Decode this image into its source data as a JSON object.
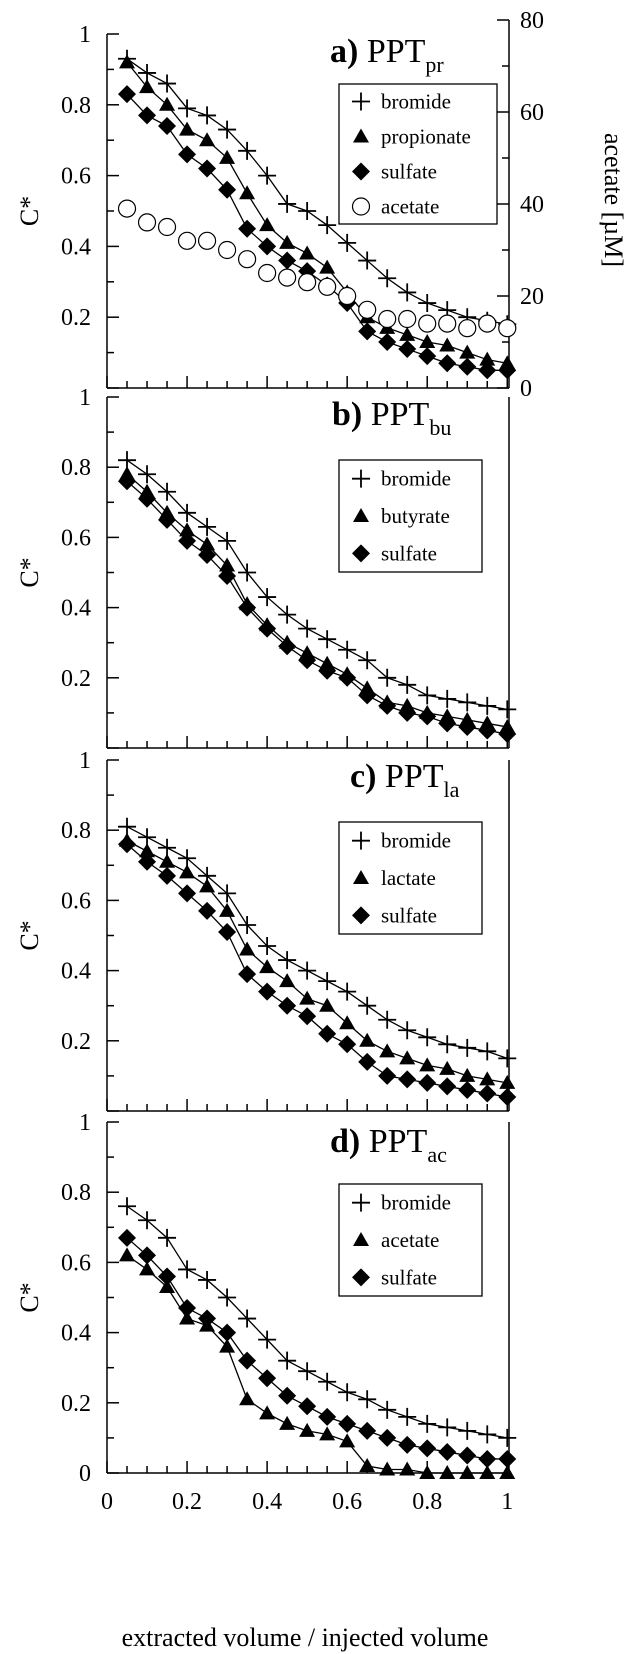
{
  "chart_data": [
    {
      "type": "line",
      "title": "a) PPT",
      "title_sub": "pr",
      "ylabel": "C*",
      "ylabel_right": "acetate [µM]",
      "ylim": [
        0,
        1
      ],
      "y_ticks": [
        "1",
        "0.8",
        "0.6",
        "0.4",
        "0.2"
      ],
      "y2lim": [
        0,
        80
      ],
      "y2_ticks": [
        "80",
        "60",
        "40",
        "20",
        "0"
      ],
      "legend": "top-right",
      "series": [
        {
          "name": "bromide",
          "marker": "plus",
          "line": true,
          "axis": "left",
          "x": [
            0.05,
            0.1,
            0.15,
            0.2,
            0.25,
            0.3,
            0.35,
            0.4,
            0.45,
            0.5,
            0.55,
            0.6,
            0.65,
            0.7,
            0.75,
            0.8,
            0.85,
            0.9,
            0.95,
            1.0
          ],
          "y": [
            0.93,
            0.89,
            0.86,
            0.79,
            0.77,
            0.73,
            0.67,
            0.6,
            0.52,
            0.5,
            0.46,
            0.41,
            0.36,
            0.31,
            0.27,
            0.24,
            0.22,
            0.2,
            0.19,
            0.18
          ]
        },
        {
          "name": "propionate",
          "marker": "triangle",
          "line": true,
          "axis": "left",
          "x": [
            0.05,
            0.1,
            0.15,
            0.2,
            0.25,
            0.3,
            0.35,
            0.4,
            0.45,
            0.5,
            0.55,
            0.6,
            0.65,
            0.7,
            0.75,
            0.8,
            0.85,
            0.9,
            0.95,
            1.0
          ],
          "y": [
            0.92,
            0.85,
            0.8,
            0.73,
            0.7,
            0.65,
            0.55,
            0.46,
            0.41,
            0.38,
            0.34,
            0.27,
            0.2,
            0.17,
            0.15,
            0.13,
            0.12,
            0.1,
            0.08,
            0.07
          ]
        },
        {
          "name": "sulfate",
          "marker": "diamond",
          "line": true,
          "axis": "left",
          "x": [
            0.05,
            0.1,
            0.15,
            0.2,
            0.25,
            0.3,
            0.35,
            0.4,
            0.45,
            0.5,
            0.55,
            0.6,
            0.65,
            0.7,
            0.75,
            0.8,
            0.85,
            0.9,
            0.95,
            1.0
          ],
          "y": [
            0.83,
            0.77,
            0.74,
            0.66,
            0.62,
            0.56,
            0.45,
            0.4,
            0.36,
            0.33,
            0.29,
            0.24,
            0.16,
            0.13,
            0.11,
            0.09,
            0.07,
            0.06,
            0.05,
            0.05
          ]
        },
        {
          "name": "acetate",
          "marker": "circle",
          "line": false,
          "axis": "right",
          "x": [
            0.05,
            0.1,
            0.15,
            0.2,
            0.25,
            0.3,
            0.35,
            0.4,
            0.45,
            0.5,
            0.55,
            0.6,
            0.65,
            0.7,
            0.75,
            0.8,
            0.85,
            0.9,
            0.95,
            1.0
          ],
          "y": [
            39,
            36,
            35,
            32,
            32,
            30,
            28,
            25,
            24,
            23,
            22,
            20,
            17,
            15,
            15,
            14,
            14,
            13,
            14,
            13
          ]
        }
      ]
    },
    {
      "type": "line",
      "title": "b) PPT",
      "title_sub": "bu",
      "ylabel": "C*",
      "ylim": [
        0,
        1
      ],
      "y_ticks": [
        "1",
        "0.8",
        "0.6",
        "0.4",
        "0.2"
      ],
      "legend": "top-right",
      "series": [
        {
          "name": "bromide",
          "marker": "plus",
          "line": true,
          "x": [
            0.05,
            0.1,
            0.15,
            0.2,
            0.25,
            0.3,
            0.35,
            0.4,
            0.45,
            0.5,
            0.55,
            0.6,
            0.65,
            0.7,
            0.75,
            0.8,
            0.85,
            0.9,
            0.95,
            1.0
          ],
          "y": [
            0.82,
            0.78,
            0.73,
            0.67,
            0.63,
            0.59,
            0.5,
            0.43,
            0.38,
            0.34,
            0.31,
            0.28,
            0.25,
            0.2,
            0.18,
            0.15,
            0.14,
            0.13,
            0.12,
            0.11
          ]
        },
        {
          "name": "butyrate",
          "marker": "triangle",
          "line": true,
          "x": [
            0.05,
            0.1,
            0.15,
            0.2,
            0.25,
            0.3,
            0.35,
            0.4,
            0.45,
            0.5,
            0.55,
            0.6,
            0.65,
            0.7,
            0.75,
            0.8,
            0.85,
            0.9,
            0.95,
            1.0
          ],
          "y": [
            0.78,
            0.73,
            0.67,
            0.62,
            0.58,
            0.52,
            0.41,
            0.35,
            0.3,
            0.27,
            0.24,
            0.21,
            0.17,
            0.13,
            0.12,
            0.1,
            0.09,
            0.08,
            0.07,
            0.06
          ]
        },
        {
          "name": "sulfate",
          "marker": "diamond",
          "line": true,
          "x": [
            0.05,
            0.1,
            0.15,
            0.2,
            0.25,
            0.3,
            0.35,
            0.4,
            0.45,
            0.5,
            0.55,
            0.6,
            0.65,
            0.7,
            0.75,
            0.8,
            0.85,
            0.9,
            0.95,
            1.0
          ],
          "y": [
            0.76,
            0.71,
            0.65,
            0.59,
            0.55,
            0.49,
            0.4,
            0.34,
            0.29,
            0.25,
            0.22,
            0.2,
            0.15,
            0.12,
            0.1,
            0.09,
            0.07,
            0.06,
            0.05,
            0.04
          ]
        }
      ]
    },
    {
      "type": "line",
      "title": "c) PPT",
      "title_sub": "la",
      "ylabel": "C*",
      "ylim": [
        0,
        1
      ],
      "y_ticks": [
        "1",
        "0.8",
        "0.6",
        "0.4",
        "0.2"
      ],
      "legend": "top-right",
      "series": [
        {
          "name": "bromide",
          "marker": "plus",
          "line": true,
          "x": [
            0.05,
            0.1,
            0.15,
            0.2,
            0.25,
            0.3,
            0.35,
            0.4,
            0.45,
            0.5,
            0.55,
            0.6,
            0.65,
            0.7,
            0.75,
            0.8,
            0.85,
            0.9,
            0.95,
            1.0
          ],
          "y": [
            0.81,
            0.78,
            0.75,
            0.72,
            0.67,
            0.62,
            0.53,
            0.47,
            0.43,
            0.4,
            0.37,
            0.34,
            0.3,
            0.26,
            0.23,
            0.21,
            0.19,
            0.18,
            0.17,
            0.15
          ]
        },
        {
          "name": "lactate",
          "marker": "triangle",
          "line": true,
          "x": [
            0.05,
            0.1,
            0.15,
            0.2,
            0.25,
            0.3,
            0.35,
            0.4,
            0.45,
            0.5,
            0.55,
            0.6,
            0.65,
            0.7,
            0.75,
            0.8,
            0.85,
            0.9,
            0.95,
            1.0
          ],
          "y": [
            0.77,
            0.74,
            0.71,
            0.68,
            0.64,
            0.57,
            0.46,
            0.41,
            0.37,
            0.32,
            0.3,
            0.25,
            0.2,
            0.17,
            0.15,
            0.13,
            0.12,
            0.1,
            0.09,
            0.08
          ]
        },
        {
          "name": "sulfate",
          "marker": "diamond",
          "line": true,
          "x": [
            0.05,
            0.1,
            0.15,
            0.2,
            0.25,
            0.3,
            0.35,
            0.4,
            0.45,
            0.5,
            0.55,
            0.6,
            0.65,
            0.7,
            0.75,
            0.8,
            0.85,
            0.9,
            0.95,
            1.0
          ],
          "y": [
            0.76,
            0.71,
            0.67,
            0.62,
            0.57,
            0.51,
            0.39,
            0.34,
            0.3,
            0.27,
            0.22,
            0.19,
            0.14,
            0.1,
            0.09,
            0.08,
            0.07,
            0.06,
            0.05,
            0.04
          ]
        }
      ]
    },
    {
      "type": "line",
      "title": "d) PPT",
      "title_sub": "ac",
      "ylabel": "C*",
      "xlabel": "extracted volume / injected volume",
      "ylim": [
        0,
        1
      ],
      "y_ticks": [
        "1",
        "0.8",
        "0.6",
        "0.4",
        "0.2",
        "0"
      ],
      "x_ticks": [
        "0",
        "0.2",
        "0.4",
        "0.6",
        "0.8",
        "1"
      ],
      "xlim": [
        0,
        1
      ],
      "legend": "top-right",
      "series": [
        {
          "name": "bromide",
          "marker": "plus",
          "line": true,
          "x": [
            0.05,
            0.1,
            0.15,
            0.2,
            0.25,
            0.3,
            0.35,
            0.4,
            0.45,
            0.5,
            0.55,
            0.6,
            0.65,
            0.7,
            0.75,
            0.8,
            0.85,
            0.9,
            0.95,
            1.0
          ],
          "y": [
            0.76,
            0.72,
            0.67,
            0.58,
            0.55,
            0.5,
            0.44,
            0.38,
            0.32,
            0.29,
            0.26,
            0.23,
            0.21,
            0.18,
            0.16,
            0.14,
            0.13,
            0.12,
            0.11,
            0.1
          ]
        },
        {
          "name": "acetate",
          "marker": "triangle",
          "line": true,
          "x": [
            0.05,
            0.1,
            0.15,
            0.2,
            0.25,
            0.3,
            0.35,
            0.4,
            0.45,
            0.5,
            0.55,
            0.6,
            0.65,
            0.7,
            0.75,
            0.8,
            0.85,
            0.9,
            0.95,
            1.0
          ],
          "y": [
            0.62,
            0.58,
            0.53,
            0.44,
            0.42,
            0.36,
            0.21,
            0.17,
            0.14,
            0.12,
            0.11,
            0.09,
            0.02,
            0.01,
            0.01,
            0.0,
            0.0,
            0.0,
            0.0,
            0.0
          ]
        },
        {
          "name": "sulfate",
          "marker": "diamond",
          "line": true,
          "x": [
            0.05,
            0.1,
            0.15,
            0.2,
            0.25,
            0.3,
            0.35,
            0.4,
            0.45,
            0.5,
            0.55,
            0.6,
            0.65,
            0.7,
            0.75,
            0.8,
            0.85,
            0.9,
            0.95,
            1.0
          ],
          "y": [
            0.67,
            0.62,
            0.56,
            0.47,
            0.44,
            0.4,
            0.32,
            0.27,
            0.22,
            0.19,
            0.16,
            0.14,
            0.12,
            0.1,
            0.08,
            0.07,
            0.06,
            0.05,
            0.04,
            0.04
          ]
        }
      ]
    }
  ]
}
